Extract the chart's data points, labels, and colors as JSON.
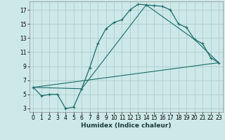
{
  "xlabel": "Humidex (Indice chaleur)",
  "bg_color": "#cde8e8",
  "grid_color": "#b0cccc",
  "line_color": "#1a6b6b",
  "xlim": [
    -0.5,
    23.5
  ],
  "ylim": [
    2.5,
    18.2
  ],
  "xticks": [
    0,
    1,
    2,
    3,
    4,
    5,
    6,
    7,
    8,
    9,
    10,
    11,
    12,
    13,
    14,
    15,
    16,
    17,
    18,
    19,
    20,
    21,
    22,
    23
  ],
  "yticks": [
    3,
    5,
    7,
    9,
    11,
    13,
    15,
    17
  ],
  "line1_x": [
    0,
    1,
    2,
    3,
    4,
    5,
    6,
    7,
    8,
    9,
    10,
    11,
    12,
    13,
    14,
    15,
    16,
    17,
    18,
    19,
    20,
    21,
    22,
    23
  ],
  "line1_y": [
    6.0,
    4.8,
    5.0,
    5.0,
    3.0,
    3.2,
    5.8,
    8.8,
    12.2,
    14.3,
    15.2,
    15.6,
    17.0,
    17.8,
    17.7,
    17.6,
    17.5,
    17.0,
    15.0,
    14.5,
    12.8,
    12.2,
    10.2,
    9.5
  ],
  "line2_x": [
    0,
    6,
    14,
    20,
    23
  ],
  "line2_y": [
    6.0,
    5.8,
    17.7,
    12.8,
    9.5
  ],
  "line3_x": [
    0,
    23
  ],
  "line3_y": [
    6.0,
    9.5
  ]
}
